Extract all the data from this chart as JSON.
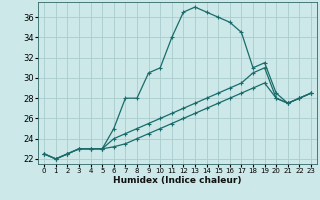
{
  "xlabel": "Humidex (Indice chaleur)",
  "background_color": "#cce8e8",
  "grid_color": "#aacccc",
  "line_color": "#1a6b6b",
  "xlim": [
    -0.5,
    23.5
  ],
  "ylim": [
    21.5,
    37.5
  ],
  "xticks": [
    0,
    1,
    2,
    3,
    4,
    5,
    6,
    7,
    8,
    9,
    10,
    11,
    12,
    13,
    14,
    15,
    16,
    17,
    18,
    19,
    20,
    21,
    22,
    23
  ],
  "yticks": [
    22,
    24,
    26,
    28,
    30,
    32,
    34,
    36
  ],
  "curve1_x": [
    0,
    1,
    2,
    3,
    4,
    5,
    6,
    7,
    8,
    9,
    10,
    11,
    12,
    13,
    14,
    15,
    16,
    17,
    18,
    19,
    20,
    21,
    22,
    23
  ],
  "curve1_y": [
    22.5,
    22.0,
    22.5,
    23.0,
    23.0,
    23.0,
    25.0,
    28.0,
    28.0,
    30.5,
    31.0,
    34.0,
    36.5,
    37.0,
    36.5,
    36.0,
    35.5,
    34.5,
    31.0,
    31.5,
    28.5,
    27.5,
    28.0,
    28.5
  ],
  "curve2_x": [
    0,
    1,
    2,
    3,
    4,
    5,
    6,
    7,
    8,
    9,
    10,
    11,
    12,
    13,
    14,
    15,
    16,
    17,
    18,
    19,
    20,
    21,
    22,
    23
  ],
  "curve2_y": [
    22.5,
    22.0,
    22.5,
    23.0,
    23.0,
    23.0,
    24.0,
    24.5,
    25.0,
    25.5,
    26.0,
    26.5,
    27.0,
    27.5,
    28.0,
    28.5,
    29.0,
    29.5,
    30.5,
    31.0,
    28.0,
    27.5,
    28.0,
    28.5
  ],
  "curve3_x": [
    0,
    1,
    2,
    3,
    4,
    5,
    6,
    7,
    8,
    9,
    10,
    11,
    12,
    13,
    14,
    15,
    16,
    17,
    18,
    19,
    20,
    21,
    22,
    23
  ],
  "curve3_y": [
    22.5,
    22.0,
    22.5,
    23.0,
    23.0,
    23.0,
    23.2,
    23.5,
    24.0,
    24.5,
    25.0,
    25.5,
    26.0,
    26.5,
    27.0,
    27.5,
    28.0,
    28.5,
    29.0,
    29.5,
    28.0,
    27.5,
    28.0,
    28.5
  ]
}
